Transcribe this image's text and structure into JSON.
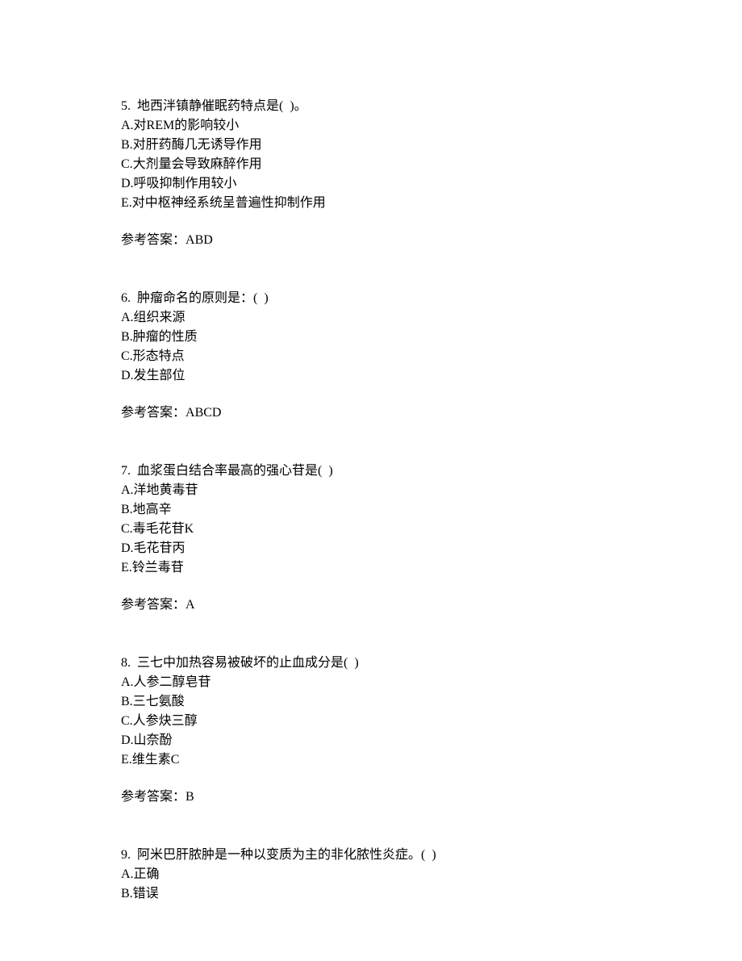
{
  "document": {
    "font_family": "SimSun",
    "font_size": 16,
    "line_height": 24,
    "text_color": "#000000",
    "background_color": "#ffffff",
    "answer_label_prefix": "参考答案：",
    "questions": [
      {
        "number": "5.",
        "text": "地西泮镇静催眠药特点是(  )。",
        "options": [
          "A.对REM的影响较小",
          "B.对肝药酶几无诱导作用",
          "C.大剂量会导致麻醉作用",
          "D.呼吸抑制作用较小",
          "E.对中枢神经系统呈普遍性抑制作用"
        ],
        "answer": "ABD"
      },
      {
        "number": "6.",
        "text": "肿瘤命名的原则是：(  )",
        "options": [
          "A.组织来源",
          "B.肿瘤的性质",
          "C.形态特点",
          "D.发生部位"
        ],
        "answer": "ABCD"
      },
      {
        "number": "7.",
        "text": "血浆蛋白结合率最高的强心苷是(  )",
        "options": [
          "A.洋地黄毒苷",
          "B.地高辛",
          "C.毒毛花苷K",
          "D.毛花苷丙",
          "E.铃兰毒苷"
        ],
        "answer": "A"
      },
      {
        "number": "8.",
        "text": "三七中加热容易被破坏的止血成分是(  )",
        "options": [
          "A.人参二醇皂苷",
          "B.三七氨酸",
          "C.人参炔三醇",
          "D.山奈酚",
          "E.维生素C"
        ],
        "answer": "B"
      },
      {
        "number": "9.",
        "text": "阿米巴肝脓肿是一种以变质为主的非化脓性炎症。(  )",
        "options": [
          "A.正确",
          "B.错误"
        ],
        "answer": null
      }
    ]
  }
}
